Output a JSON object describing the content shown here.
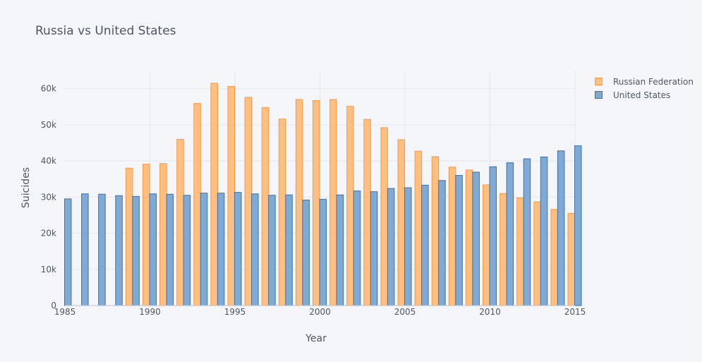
{
  "chart_data": {
    "type": "bar",
    "title": "Russia vs United States",
    "xlabel": "Year",
    "ylabel": "Suicides",
    "xlim": [
      1985,
      2015
    ],
    "ylim": [
      0,
      65000
    ],
    "x_ticks": [
      1985,
      1990,
      1995,
      2000,
      2005,
      2010,
      2015
    ],
    "y_ticks": [
      0,
      10000,
      20000,
      30000,
      40000,
      50000,
      60000
    ],
    "y_tick_labels": [
      "0",
      "10k",
      "20k",
      "30k",
      "40k",
      "50k",
      "60k"
    ],
    "grid": true,
    "legend_position": "top-right",
    "x": [
      1985,
      1986,
      1987,
      1988,
      1989,
      1990,
      1991,
      1992,
      1993,
      1994,
      1995,
      1996,
      1997,
      1998,
      1999,
      2000,
      2001,
      2002,
      2003,
      2004,
      2005,
      2006,
      2007,
      2008,
      2009,
      2010,
      2011,
      2012,
      2013,
      2014,
      2015
    ],
    "series": [
      {
        "name": "Russian Federation",
        "color": "#ffbf80",
        "stroke": "#f59a4a",
        "values": [
          null,
          null,
          null,
          null,
          38000,
          39100,
          39300,
          46000,
          55900,
          61500,
          60600,
          57600,
          54800,
          51600,
          57000,
          56700,
          57000,
          55100,
          51500,
          49200,
          45900,
          42700,
          41200,
          38300,
          37500,
          33400,
          31000,
          29800,
          28700,
          26600,
          25500
        ]
      },
      {
        "name": "United States",
        "color": "#80aad4",
        "stroke": "#3d73a8",
        "values": [
          29500,
          30900,
          30800,
          30400,
          30200,
          30900,
          30800,
          30500,
          31100,
          31100,
          31300,
          30900,
          30500,
          30600,
          29200,
          29400,
          30600,
          31700,
          31500,
          32400,
          32600,
          33300,
          34600,
          36000,
          36900,
          38400,
          39500,
          40600,
          41100,
          42800,
          44200
        ]
      }
    ]
  }
}
